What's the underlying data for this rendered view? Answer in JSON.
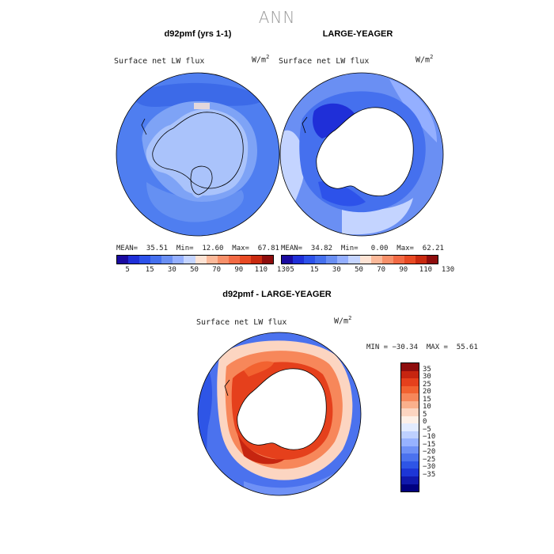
{
  "main_title": "ANN",
  "panels": [
    {
      "title": "d92pmf (yrs 1-1)",
      "field": "Surface net LW flux",
      "units": "W/m",
      "units_sup": "2",
      "stats": "MEAN=  35.51  Min=  12.60  Max=  67.81"
    },
    {
      "title": "LARGE-YEAGER",
      "field": "Surface net LW flux",
      "units": "W/m",
      "units_sup": "2",
      "stats": "MEAN=  34.82  Min=   0.00  Max=  62.21"
    }
  ],
  "top_colorbar": {
    "colors": [
      "#1a0aa0",
      "#1f2fd8",
      "#2d52ea",
      "#4570ee",
      "#6a8ff3",
      "#94afff",
      "#c4d4ff",
      "#fde3d4",
      "#fbb99a",
      "#f7906a",
      "#f26a45",
      "#e84a24",
      "#c92a10",
      "#8e0d0d"
    ],
    "ticks": [
      "5",
      "15",
      "30",
      "50",
      "70",
      "90",
      "110",
      "130"
    ]
  },
  "diff_panel": {
    "title": "d92pmf - LARGE-YEAGER",
    "field": "Surface net LW flux",
    "units": "W/m",
    "units_sup": "2",
    "stats": "MIN = −30.34  MAX =  55.61"
  },
  "diff_colorbar": {
    "colors": [
      "#8e0d0d",
      "#c62510",
      "#e5401c",
      "#f26230",
      "#f7875a",
      "#fab08c",
      "#fcd5c1",
      "#fdf0e8",
      "#e2ebff",
      "#bed0ff",
      "#97b2ff",
      "#6f91f6",
      "#4b72ee",
      "#2e55e6",
      "#1d36d6",
      "#1019ad",
      "#000080"
    ],
    "ticks": [
      "35",
      "30",
      "25",
      "20",
      "15",
      "10",
      "5",
      "0",
      "−5",
      "−10",
      "−15",
      "−20",
      "−25",
      "−30",
      "−35"
    ]
  }
}
